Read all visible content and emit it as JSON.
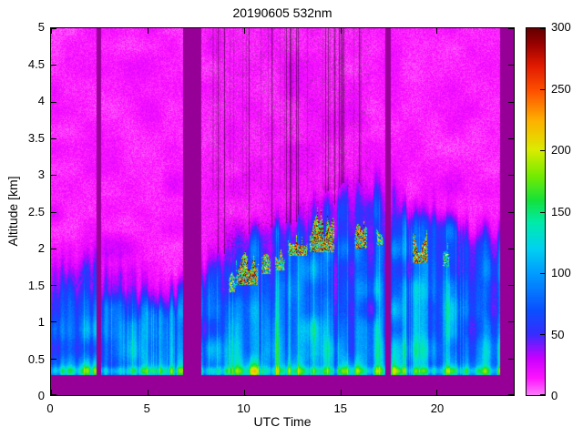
{
  "chart_data": {
    "type": "heatmap",
    "title": "20190605 532nm",
    "xlabel": "UTC Time",
    "ylabel": "Altitude [km]",
    "xlim": [
      0,
      24
    ],
    "ylim": [
      0,
      5
    ],
    "grid": false,
    "x_tick_values": [
      0,
      5,
      10,
      15,
      20
    ],
    "x_tick_labels": [
      "0",
      "5",
      "10",
      "15",
      "20"
    ],
    "y_tick_values": [
      0,
      0.5,
      1,
      1.5,
      2,
      2.5,
      3,
      3.5,
      4,
      4.5,
      5
    ],
    "y_tick_labels": [
      "0",
      "0.5",
      "1",
      "1.5",
      "2",
      "2.5",
      "3",
      "3.5",
      "4",
      "4.5",
      "5"
    ],
    "colorbar": {
      "min": 0,
      "max": 300,
      "position": "right",
      "tick_values": [
        0,
        50,
        100,
        150,
        200,
        250,
        300
      ],
      "tick_labels": [
        "0",
        "50",
        "100",
        "150",
        "200",
        "250",
        "300"
      ],
      "colormap_stops": [
        [
          0.0,
          252,
          120,
          252
        ],
        [
          0.045,
          255,
          20,
          255
        ],
        [
          0.1,
          200,
          0,
          255
        ],
        [
          0.165,
          55,
          45,
          255
        ],
        [
          0.23,
          10,
          80,
          255
        ],
        [
          0.33,
          0,
          155,
          255
        ],
        [
          0.4,
          0,
          210,
          240
        ],
        [
          0.47,
          0,
          235,
          170
        ],
        [
          0.53,
          20,
          225,
          60
        ],
        [
          0.6,
          120,
          235,
          0
        ],
        [
          0.67,
          220,
          235,
          0
        ],
        [
          0.75,
          255,
          175,
          0
        ],
        [
          0.83,
          255,
          80,
          0
        ],
        [
          0.9,
          225,
          25,
          0
        ],
        [
          0.96,
          150,
          0,
          0
        ],
        [
          1.0,
          100,
          0,
          0
        ]
      ]
    },
    "no_data_color_rgb": [
      150,
      0,
      150
    ],
    "data_gaps_utc": [
      [
        2.35,
        2.62
      ],
      [
        6.85,
        7.78
      ],
      [
        17.35,
        17.62
      ],
      [
        23.3,
        24.0
      ]
    ],
    "field": {
      "surface_band_top_km": 0.27,
      "near_surface_layer": {
        "altitude_km": 0.33,
        "amplitude": 45,
        "width_km": 0.06
      },
      "background": {
        "base": 6,
        "noise_amp": 13
      },
      "boundary_layer": {
        "base": 34,
        "surface_boost": 60,
        "scale_height_km": 1.6,
        "top_profile_km": [
          [
            0,
            1.5
          ],
          [
            2,
            1.45
          ],
          [
            4,
            1.5
          ],
          [
            6,
            1.55
          ],
          [
            8,
            1.75
          ],
          [
            9,
            1.85
          ],
          [
            10,
            2.0
          ],
          [
            11,
            2.0
          ],
          [
            12,
            2.1
          ],
          [
            13,
            2.2
          ],
          [
            14,
            2.35
          ],
          [
            15,
            2.5
          ],
          [
            16,
            2.6
          ],
          [
            17,
            2.6
          ],
          [
            18,
            2.5
          ],
          [
            19,
            2.6
          ],
          [
            20,
            2.7
          ],
          [
            21,
            2.4
          ],
          [
            22,
            2.1
          ],
          [
            23,
            1.95
          ],
          [
            24,
            1.85
          ]
        ]
      },
      "clouds": [
        {
          "t0": 9.2,
          "t1": 9.6,
          "base": 1.45,
          "top": 1.7,
          "peak": 220
        },
        {
          "t0": 9.6,
          "t1": 10.75,
          "base": 1.55,
          "top": 1.98,
          "peak": 300
        },
        {
          "t0": 10.9,
          "t1": 11.4,
          "base": 1.7,
          "top": 1.95,
          "peak": 260
        },
        {
          "t0": 11.6,
          "t1": 12.15,
          "base": 1.75,
          "top": 1.98,
          "peak": 240
        },
        {
          "t0": 12.3,
          "t1": 13.3,
          "base": 1.95,
          "top": 2.2,
          "peak": 300
        },
        {
          "t0": 13.4,
          "t1": 14.7,
          "base": 2.0,
          "top": 2.42,
          "peak": 300
        },
        {
          "t0": 15.75,
          "t1": 16.4,
          "base": 2.05,
          "top": 2.32,
          "peak": 290
        },
        {
          "t0": 16.85,
          "t1": 17.25,
          "base": 2.1,
          "top": 2.3,
          "peak": 200
        },
        {
          "t0": 18.75,
          "t1": 19.55,
          "base": 1.85,
          "top": 2.2,
          "peak": 300
        },
        {
          "t0": 20.3,
          "t1": 20.7,
          "base": 1.8,
          "top": 2.0,
          "peak": 170
        }
      ],
      "attenuation_streaks_utc": [
        8.0,
        16.6
      ]
    }
  }
}
